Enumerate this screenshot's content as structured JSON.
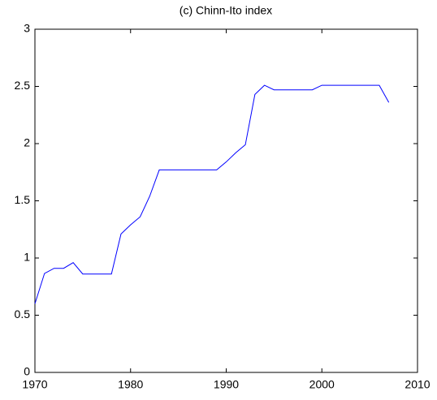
{
  "chart_data": {
    "type": "line",
    "title": "(c) Chinn-Ito index",
    "x": [
      1970,
      1971,
      1972,
      1973,
      1974,
      1975,
      1976,
      1977,
      1978,
      1979,
      1980,
      1981,
      1982,
      1983,
      1984,
      1985,
      1986,
      1987,
      1988,
      1989,
      1990,
      1991,
      1992,
      1993,
      1994,
      1995,
      1996,
      1997,
      1998,
      1999,
      2000,
      2001,
      2002,
      2003,
      2004,
      2005,
      2006,
      2007
    ],
    "series": [
      {
        "color": "#0000ff",
        "values": [
          0.6,
          0.865,
          0.91,
          0.91,
          0.96,
          0.86,
          0.86,
          0.86,
          0.86,
          1.21,
          1.29,
          1.36,
          1.54,
          1.77,
          1.77,
          1.77,
          1.77,
          1.77,
          1.77,
          1.77,
          1.84,
          1.92,
          1.99,
          2.43,
          2.51,
          2.47,
          2.47,
          2.47,
          2.47,
          2.47,
          2.51,
          2.51,
          2.51,
          2.51,
          2.51,
          2.51,
          2.51,
          2.36
        ]
      }
    ],
    "xlim": [
      1970,
      2010
    ],
    "xticks": [
      1970,
      1980,
      1990,
      2000,
      2010
    ],
    "ylim": [
      0,
      3
    ],
    "yticks": [
      0,
      0.5,
      1,
      1.5,
      2,
      2.5,
      3
    ],
    "grid": false
  }
}
